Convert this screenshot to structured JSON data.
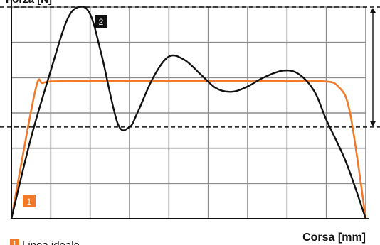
{
  "chart_data": {
    "type": "line",
    "ylabel": "Forza [N]",
    "xlabel": "Corsa [mm]",
    "xlim": [
      0,
      9
    ],
    "ylim": [
      0,
      6
    ],
    "grid": true,
    "series": [
      {
        "marker": "1",
        "name": "Linea ideale",
        "color": "#f07a2a",
        "x": [
          0,
          0.6,
          0.8,
          1.2,
          2,
          3,
          4,
          5,
          6,
          7,
          7.9,
          8.3,
          8.6,
          9
        ],
        "y": [
          0,
          3.6,
          3.85,
          3.9,
          3.9,
          3.9,
          3.9,
          3.9,
          3.9,
          3.9,
          3.9,
          3.75,
          3.0,
          0
        ]
      },
      {
        "marker": "2",
        "color": "#111111",
        "x": [
          0,
          0.5,
          1.0,
          1.4,
          1.7,
          2.0,
          2.3,
          2.7,
          3.0,
          3.2,
          3.6,
          4.0,
          4.4,
          4.8,
          5.2,
          5.6,
          6.0,
          6.4,
          6.9,
          7.3,
          7.7,
          8.0,
          8.5,
          9.0
        ],
        "y": [
          0,
          2.3,
          4.2,
          5.6,
          6.0,
          5.8,
          4.6,
          2.7,
          2.6,
          3.0,
          4.0,
          4.6,
          4.5,
          4.1,
          3.7,
          3.6,
          3.75,
          4.0,
          4.2,
          4.1,
          3.6,
          2.8,
          1.6,
          0
        ]
      }
    ],
    "dashed_levels": [
      6.0,
      2.6
    ],
    "annotation_labels": [
      "2",
      "1"
    ]
  },
  "legend": {
    "marker": "1",
    "label": "Linea ideale"
  },
  "colors": {
    "orange": "#f07a2a",
    "black": "#111111",
    "grid": "#8c8c8c"
  }
}
